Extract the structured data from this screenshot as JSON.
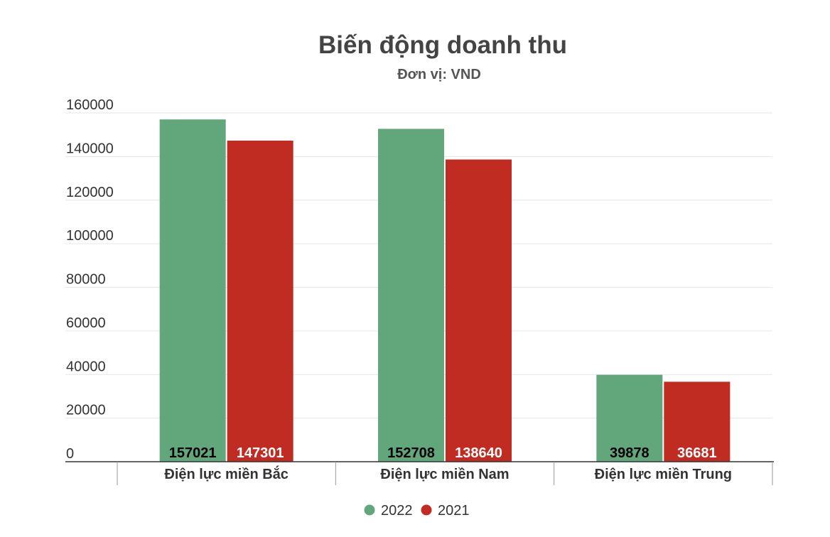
{
  "chart_data": {
    "type": "bar",
    "title": "Biến động doanh thu",
    "subtitle": "Đơn vị: VND",
    "categories": [
      "Điện lực miền Bắc",
      "Điện lực miền Nam",
      "Điện lực miền Trung"
    ],
    "series": [
      {
        "name": "2022",
        "values": [
          157021,
          152708,
          39878
        ],
        "color": "#62a77c",
        "label_color": "#000000"
      },
      {
        "name": "2021",
        "values": [
          147301,
          138640,
          36681
        ],
        "color": "#c02b22",
        "label_color": "#ffffff"
      }
    ],
    "ylim": [
      0,
      160000
    ],
    "yticks": [
      "0",
      "20000",
      "40000",
      "60000",
      "80000",
      "100000",
      "120000",
      "140000",
      "160000"
    ],
    "grid": true,
    "legend_position": "bottom-center",
    "data_labels": "inside-base"
  }
}
